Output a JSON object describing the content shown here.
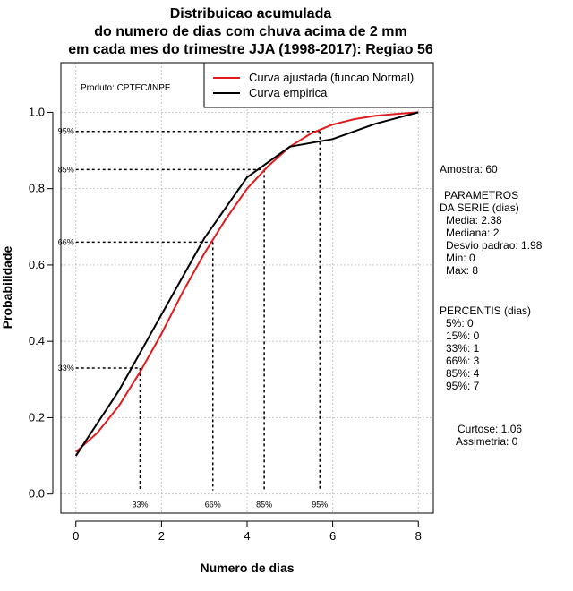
{
  "chart_data": {
    "type": "line",
    "title": [
      "Distribuicao acumulada",
      "do numero de dias com chuva acima de 2 mm",
      "em cada mes do trimestre JJA (1998-2017): Regiao 56"
    ],
    "xlabel": "Numero de dias",
    "ylabel": "Probabilidade",
    "xlim": [
      -0.35,
      8.35
    ],
    "ylim": [
      -0.05,
      1.13
    ],
    "xticks": [
      0,
      2,
      4,
      6,
      8
    ],
    "yticks": [
      0.0,
      0.2,
      0.4,
      0.6,
      0.8,
      1.0
    ],
    "grid": true,
    "product_label": "Produto: CPTEC/INPE",
    "legend_position": "top-right",
    "series": [
      {
        "name": "Curva ajustada (funcao Normal)",
        "color": "#e31a1c",
        "x": [
          0.0,
          0.5,
          1.0,
          1.5,
          2.0,
          2.5,
          3.0,
          3.5,
          4.0,
          4.5,
          5.0,
          5.5,
          6.0,
          6.5,
          7.0,
          7.5,
          8.0
        ],
        "y": [
          0.11,
          0.16,
          0.23,
          0.32,
          0.42,
          0.53,
          0.63,
          0.72,
          0.8,
          0.86,
          0.91,
          0.945,
          0.968,
          0.982,
          0.991,
          0.996,
          1.0
        ]
      },
      {
        "name": "Curva empirica",
        "color": "#000000",
        "x": [
          0,
          1,
          2,
          3,
          4,
          5,
          6,
          7,
          8
        ],
        "y": [
          0.1,
          0.27,
          0.47,
          0.67,
          0.83,
          0.91,
          0.93,
          0.97,
          1.0
        ]
      }
    ],
    "percentile_guides": [
      {
        "label": "33%",
        "prob": 0.33,
        "x": 1.5
      },
      {
        "label": "66%",
        "prob": 0.66,
        "x": 3.2
      },
      {
        "label": "85%",
        "prob": 0.85,
        "x": 4.4
      },
      {
        "label": "95%",
        "prob": 0.95,
        "x": 5.7
      }
    ]
  },
  "stats": {
    "amostra": "Amostra: 60",
    "parametros_title": "PARAMETROS",
    "parametros_sub": "DA SERIE (dias)",
    "parametros": [
      "Media: 2.38",
      "Mediana: 2",
      "Desvio padrao: 1.98",
      "Min: 0",
      "Max: 8"
    ],
    "percentis_title": "PERCENTIS (dias)",
    "percentis": [
      "5%: 0",
      "15%: 0",
      "33%: 1",
      "66%: 3",
      "85%: 4",
      "95%: 7"
    ],
    "curtose": "Curtose: 1.06",
    "assimetria": "Assimetria: 0"
  }
}
